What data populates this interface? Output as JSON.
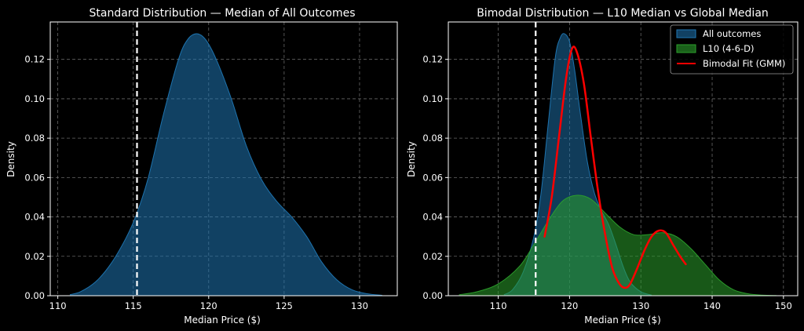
{
  "chart_data": [
    {
      "type": "area",
      "title": "Standard Distribution — Median of All Outcomes",
      "xlabel": "Median Price ($)",
      "ylabel": "Density",
      "xlim": [
        109.5,
        132.5
      ],
      "ylim": [
        0,
        0.139
      ],
      "xticks": [
        110,
        115,
        120,
        125,
        130
      ],
      "yticks": [
        0.0,
        0.02,
        0.04,
        0.06,
        0.08,
        0.1,
        0.12
      ],
      "grid": true,
      "reference_line": {
        "x": 115.25,
        "style": "dashed",
        "color": "#ffffff"
      },
      "series": [
        {
          "name": "All outcomes",
          "color": "#1f77b4",
          "x": [
            110.8,
            111.5,
            112.5,
            113.5,
            114.5,
            115.2,
            116,
            117,
            118,
            118.6,
            119.2,
            119.8,
            120.5,
            121.5,
            122.5,
            123.5,
            124.5,
            125.5,
            126.5,
            127.5,
            128.5,
            129.5,
            130.5,
            131.5
          ],
          "y": [
            0.0005,
            0.002,
            0.007,
            0.016,
            0.029,
            0.041,
            0.06,
            0.092,
            0.12,
            0.13,
            0.133,
            0.13,
            0.12,
            0.1,
            0.076,
            0.059,
            0.048,
            0.04,
            0.03,
            0.017,
            0.008,
            0.003,
            0.001,
            0.0002
          ]
        }
      ]
    },
    {
      "type": "area",
      "title": "Bimodal Distribution — L10 Median vs Global Median",
      "xlabel": "Median Price ($)",
      "ylabel": "Density",
      "xlim": [
        103,
        152
      ],
      "ylim": [
        0,
        0.139
      ],
      "xticks": [
        110,
        120,
        130,
        140,
        150
      ],
      "yticks": [
        0.0,
        0.02,
        0.04,
        0.06,
        0.08,
        0.1,
        0.12
      ],
      "grid": true,
      "reference_line": {
        "x": 115.25,
        "style": "dashed",
        "color": "#ffffff"
      },
      "legend_position": "upper-right",
      "legend": [
        "All outcomes",
        "L10 (4-6-D)",
        "Bimodal Fit (GMM)"
      ],
      "series": [
        {
          "name": "All outcomes",
          "color": "#1f77b4",
          "x": [
            110.8,
            112,
            113.5,
            115,
            116,
            117,
            118,
            118.7,
            119.3,
            120,
            120.7,
            121.5,
            122.5,
            123.5,
            124.5,
            125.5,
            126.5,
            127.5,
            128.5,
            130,
            131.5
          ],
          "y": [
            0.0005,
            0.003,
            0.012,
            0.03,
            0.052,
            0.087,
            0.121,
            0.131,
            0.133,
            0.129,
            0.115,
            0.093,
            0.068,
            0.052,
            0.043,
            0.036,
            0.026,
            0.015,
            0.007,
            0.002,
            0.0003
          ]
        },
        {
          "name": "L10 (4-6-D)",
          "color": "#2ca02c",
          "x": [
            104.5,
            107,
            110,
            113,
            115,
            117,
            119,
            121,
            123,
            125,
            127,
            129,
            131,
            133,
            135,
            137,
            139,
            141,
            143,
            145,
            147,
            149
          ],
          "y": [
            0.0005,
            0.002,
            0.006,
            0.015,
            0.026,
            0.038,
            0.048,
            0.051,
            0.049,
            0.042,
            0.035,
            0.031,
            0.031,
            0.032,
            0.03,
            0.024,
            0.016,
            0.008,
            0.003,
            0.001,
            0.0003,
            0.0001
          ]
        },
        {
          "name": "Bimodal Fit (GMM)",
          "color": "#ff0000",
          "type": "line",
          "x": [
            116.5,
            117.5,
            118.5,
            119.5,
            120.3,
            121,
            122,
            123,
            124,
            125,
            126,
            127,
            127.8,
            128.5,
            129.5,
            130.5,
            131.5,
            132.5,
            133.5,
            134.5,
            135.5,
            136.3
          ],
          "y": [
            0.03,
            0.05,
            0.08,
            0.11,
            0.125,
            0.124,
            0.108,
            0.08,
            0.053,
            0.031,
            0.014,
            0.006,
            0.004,
            0.006,
            0.014,
            0.023,
            0.03,
            0.033,
            0.032,
            0.026,
            0.02,
            0.016
          ]
        }
      ]
    }
  ]
}
